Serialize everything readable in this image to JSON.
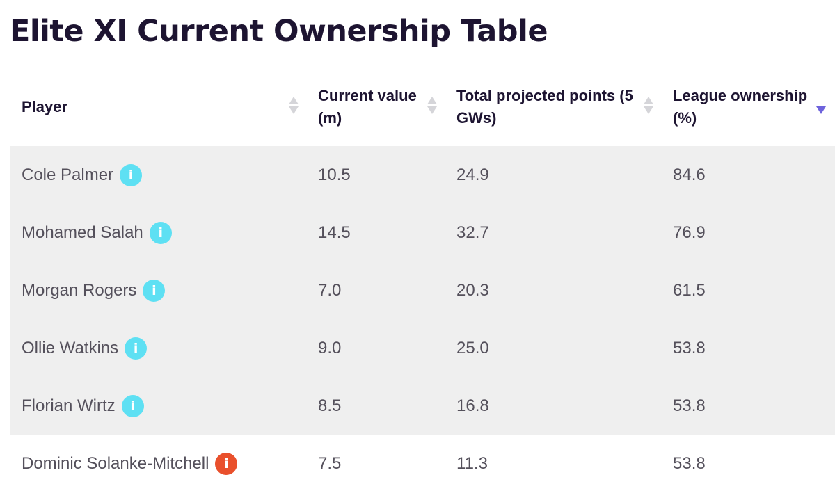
{
  "title": "Elite XI Current Ownership Table",
  "colors": {
    "info_default": "#5ee0f3",
    "info_alert": "#e9502c",
    "row_shade": "#efefef",
    "sort_active": "#6e63dc"
  },
  "columns": [
    {
      "label": "Player",
      "sort": "none"
    },
    {
      "label": "Current value (m)",
      "sort": "none"
    },
    {
      "label": "Total projected points (5 GWs)",
      "sort": "none"
    },
    {
      "label": "League ownership (%)",
      "sort": "descending"
    }
  ],
  "info_glyph": "i",
  "rows": [
    {
      "player": "Cole Palmer",
      "value": "10.5",
      "points": "24.9",
      "ownership": "84.6",
      "info_icon": "info-icon",
      "info_status": "default"
    },
    {
      "player": "Mohamed Salah",
      "value": "14.5",
      "points": "32.7",
      "ownership": "76.9",
      "info_icon": "info-icon",
      "info_status": "default"
    },
    {
      "player": "Morgan Rogers",
      "value": "7.0",
      "points": "20.3",
      "ownership": "61.5",
      "info_icon": "info-icon",
      "info_status": "default"
    },
    {
      "player": "Ollie Watkins",
      "value": "9.0",
      "points": "25.0",
      "ownership": "53.8",
      "info_icon": "info-icon",
      "info_status": "default"
    },
    {
      "player": "Florian Wirtz",
      "value": "8.5",
      "points": "16.8",
      "ownership": "53.8",
      "info_icon": "info-icon",
      "info_status": "default"
    },
    {
      "player": "Dominic Solanke-Mitchell",
      "value": "7.5",
      "points": "11.3",
      "ownership": "53.8",
      "info_icon": "alert-info-icon",
      "info_status": "alert"
    }
  ]
}
